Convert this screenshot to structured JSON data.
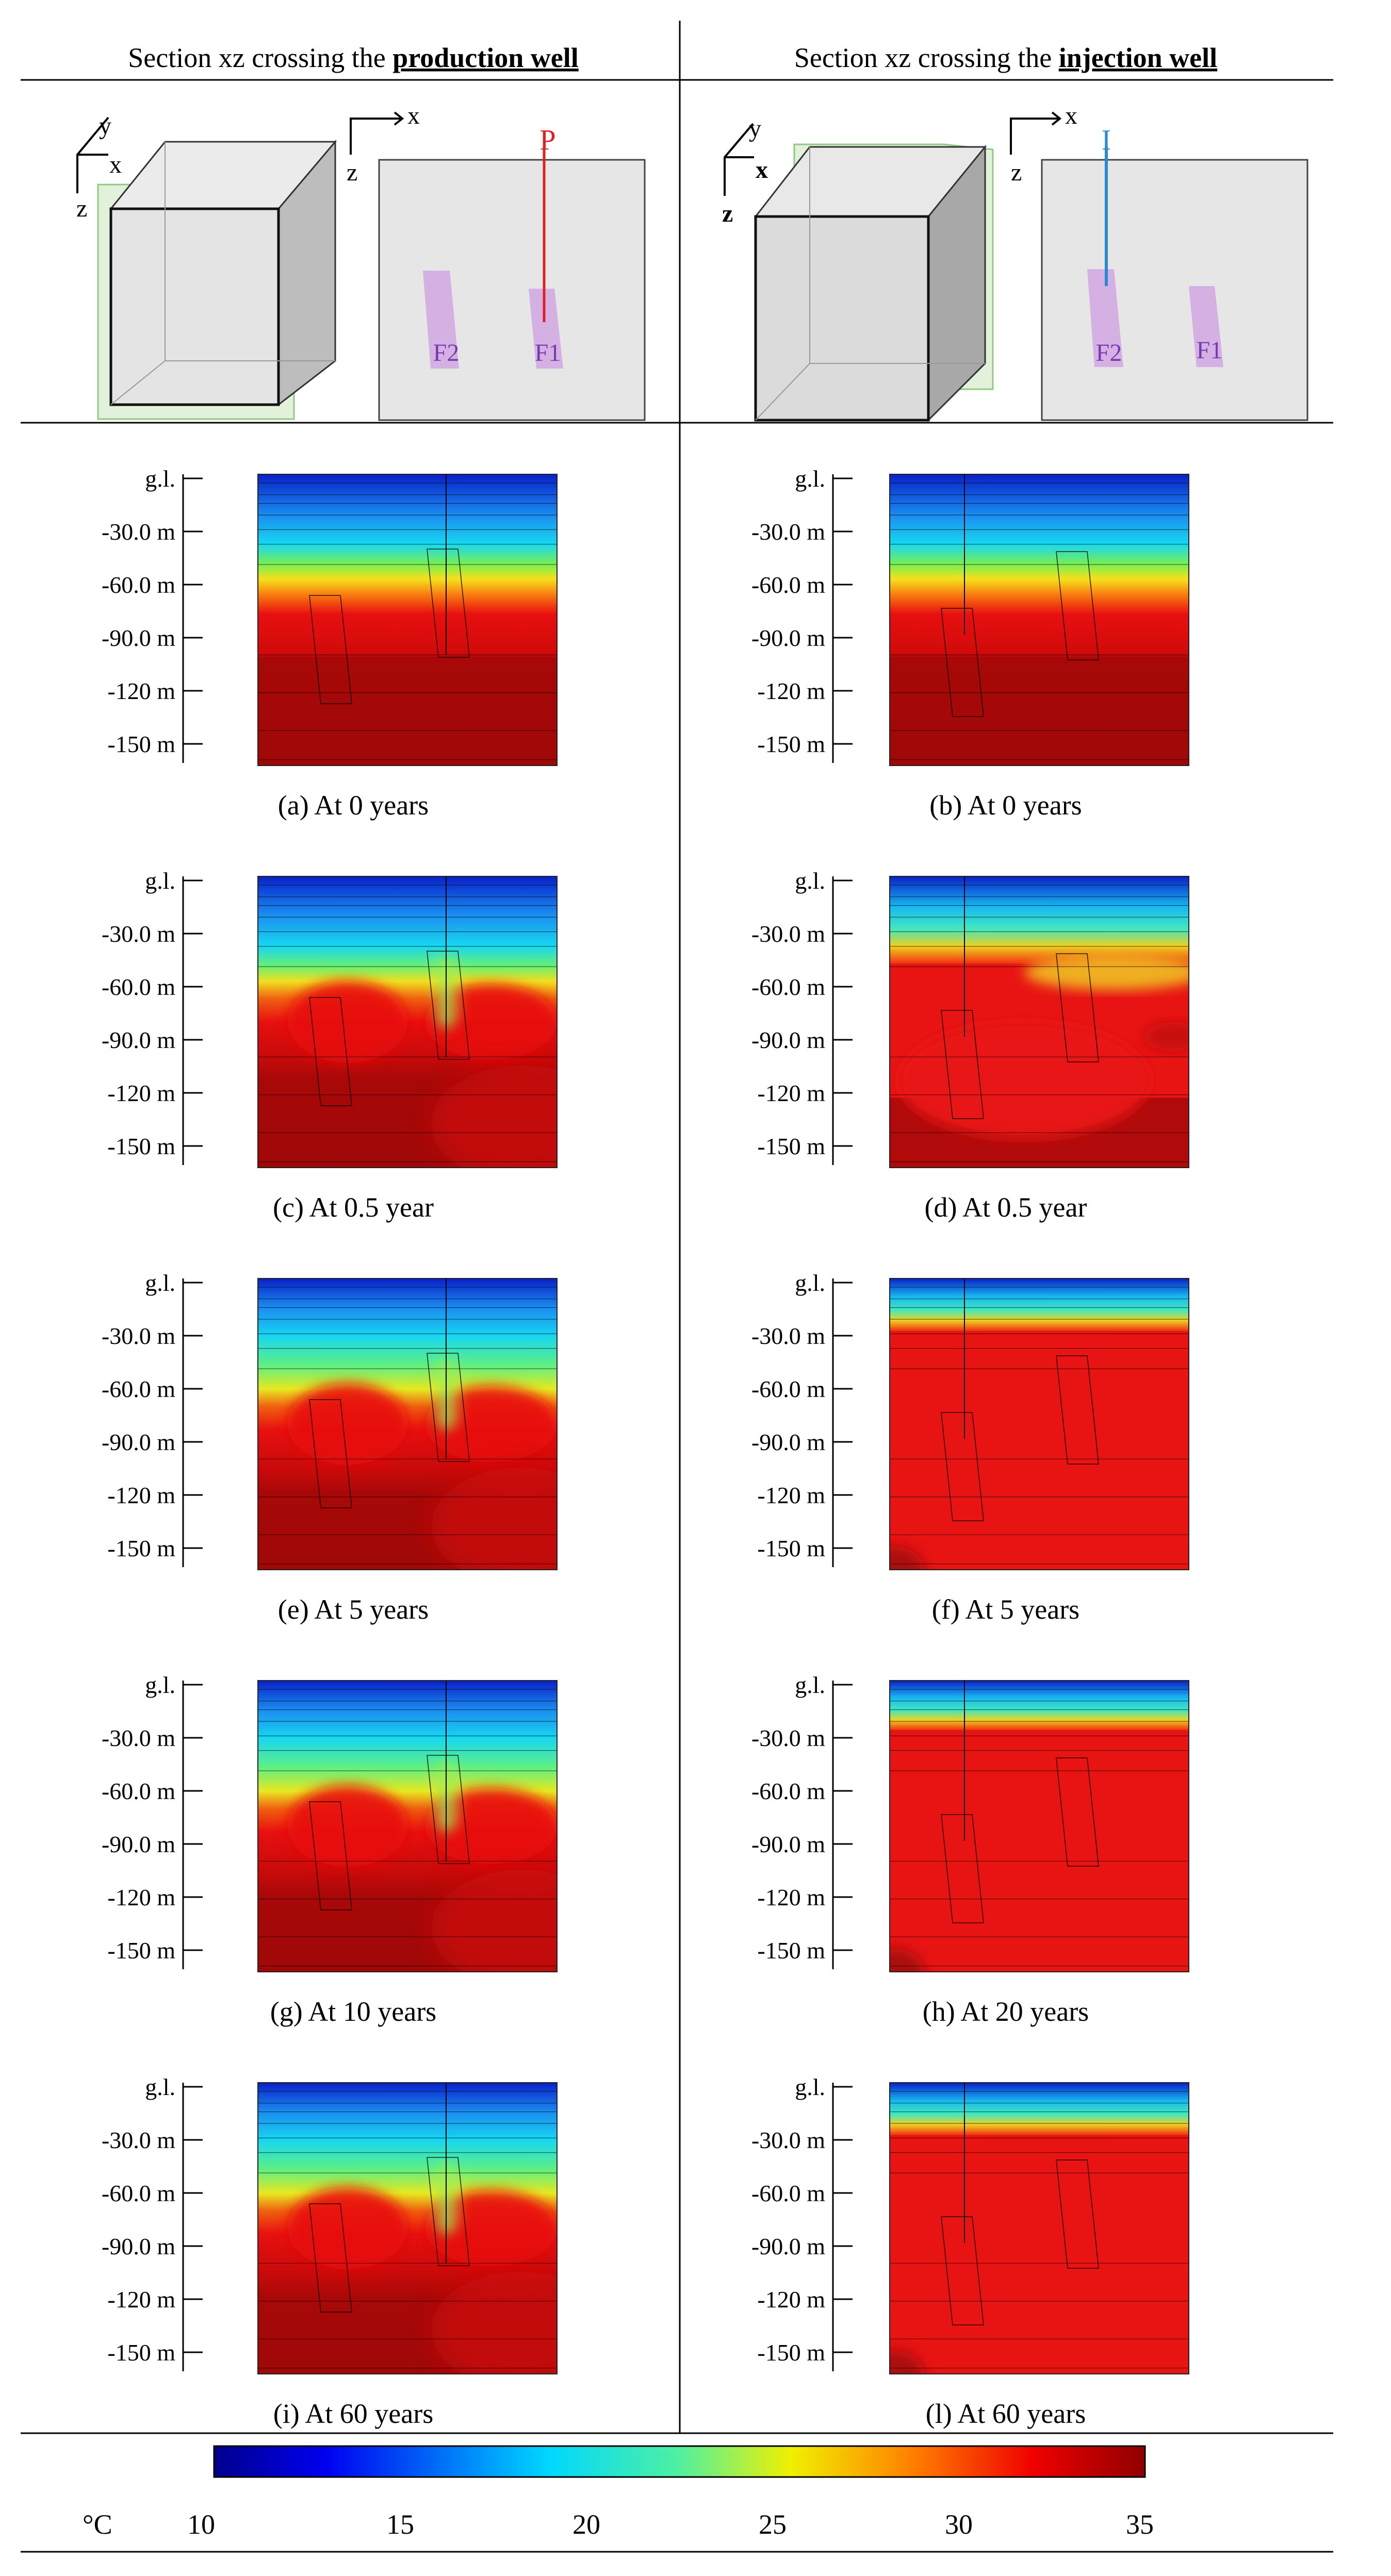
{
  "headers": {
    "left": {
      "prefix": "Section xz crossing the ",
      "bold": "production well"
    },
    "right": {
      "prefix": "Section xz crossing the ",
      "bold": "injection well"
    }
  },
  "schematic": {
    "axis_x": "x",
    "axis_y": "y",
    "axis_z": "z",
    "production_well": "P",
    "injection_well": "I",
    "fault_1": "F1",
    "fault_2": "F2",
    "production_well_color": "#e02020",
    "injection_well_color": "#2a8ad0",
    "fault_color": "#c8a0dc",
    "section_plane_color": "#c8e6c0"
  },
  "depth_axis": {
    "labels": [
      "g.l.",
      "-30.0 m",
      "-60.0 m",
      "-90.0 m",
      "-120 m",
      "-150 m"
    ],
    "values_m": [
      0,
      -30,
      -60,
      -90,
      -120,
      -150
    ]
  },
  "panels": [
    {
      "caption": "(a) At 0 years",
      "well": "production",
      "scenario": "initial"
    },
    {
      "caption": "(b) At 0 years",
      "well": "injection",
      "scenario": "initial"
    },
    {
      "caption": "(c) At 0.5 year",
      "well": "production",
      "scenario": "p-half"
    },
    {
      "caption": "(d) At 0.5 year",
      "well": "injection",
      "scenario": "i-half"
    },
    {
      "caption": "(e) At 5 years",
      "well": "production",
      "scenario": "p-5"
    },
    {
      "caption": "(f) At 5 years",
      "well": "injection",
      "scenario": "i-5"
    },
    {
      "caption": "(g) At 10 years",
      "well": "production",
      "scenario": "p-10"
    },
    {
      "caption": "(h) At 20 years",
      "well": "injection",
      "scenario": "i-20"
    },
    {
      "caption": "(i) At 60 years",
      "well": "production",
      "scenario": "p-60"
    },
    {
      "caption": "(l) At 60 years",
      "well": "injection",
      "scenario": "i-60"
    }
  ],
  "colorbar": {
    "unit": "°C",
    "ticks": [
      10,
      15,
      20,
      25,
      30,
      35
    ],
    "min": 10,
    "max": 35,
    "colormap": "jet"
  }
}
